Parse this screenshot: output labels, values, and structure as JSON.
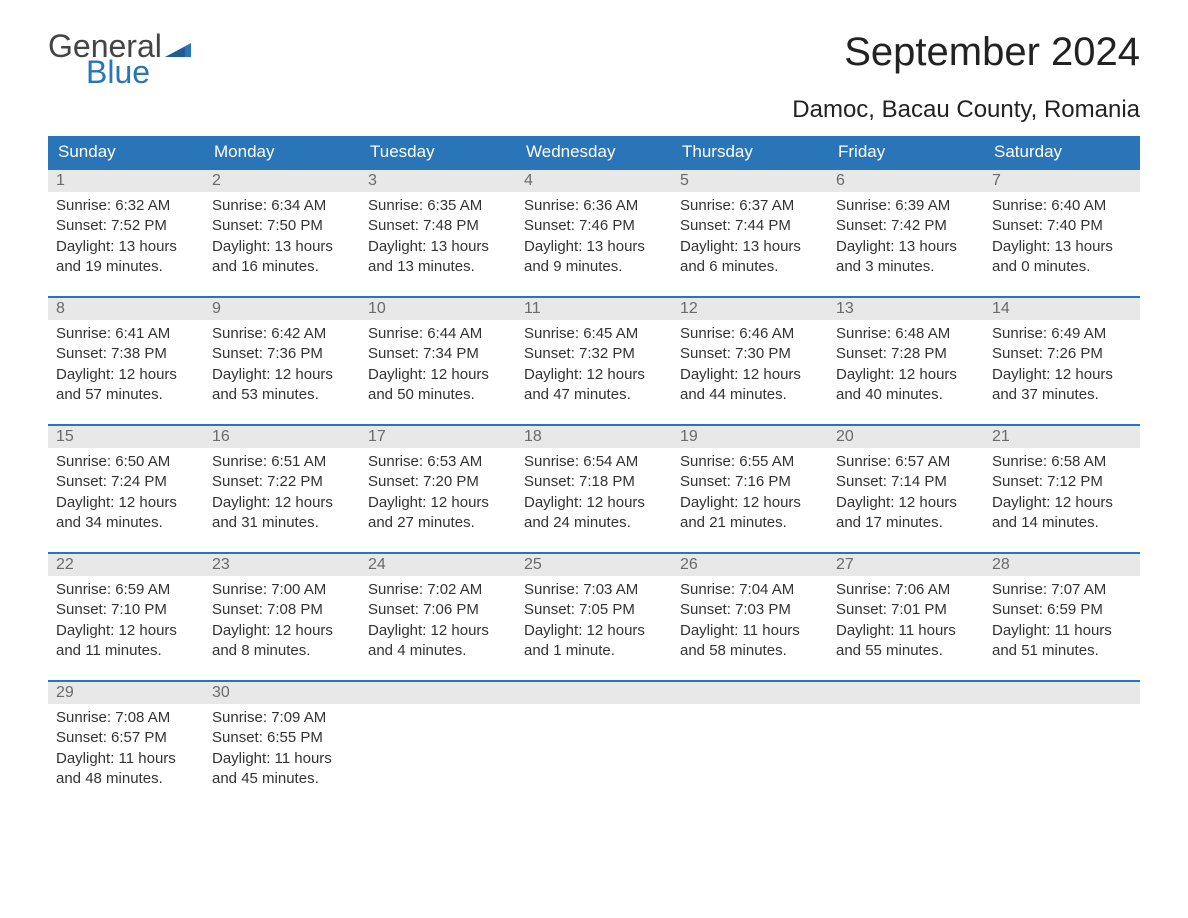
{
  "logo": {
    "text1": "General",
    "text2": "Blue",
    "color_general": "#444444",
    "color_blue": "#2a74b8"
  },
  "title": "September 2024",
  "location": "Damoc, Bacau County, Romania",
  "header_bg": "#2a74b8",
  "daynum_bg": "#e8e8e8",
  "border_color": "#2a74b8",
  "day_headers": [
    "Sunday",
    "Monday",
    "Tuesday",
    "Wednesday",
    "Thursday",
    "Friday",
    "Saturday"
  ],
  "weeks": [
    [
      {
        "n": "1",
        "sunrise": "Sunrise: 6:32 AM",
        "sunset": "Sunset: 7:52 PM",
        "day1": "Daylight: 13 hours",
        "day2": "and 19 minutes."
      },
      {
        "n": "2",
        "sunrise": "Sunrise: 6:34 AM",
        "sunset": "Sunset: 7:50 PM",
        "day1": "Daylight: 13 hours",
        "day2": "and 16 minutes."
      },
      {
        "n": "3",
        "sunrise": "Sunrise: 6:35 AM",
        "sunset": "Sunset: 7:48 PM",
        "day1": "Daylight: 13 hours",
        "day2": "and 13 minutes."
      },
      {
        "n": "4",
        "sunrise": "Sunrise: 6:36 AM",
        "sunset": "Sunset: 7:46 PM",
        "day1": "Daylight: 13 hours",
        "day2": "and 9 minutes."
      },
      {
        "n": "5",
        "sunrise": "Sunrise: 6:37 AM",
        "sunset": "Sunset: 7:44 PM",
        "day1": "Daylight: 13 hours",
        "day2": "and 6 minutes."
      },
      {
        "n": "6",
        "sunrise": "Sunrise: 6:39 AM",
        "sunset": "Sunset: 7:42 PM",
        "day1": "Daylight: 13 hours",
        "day2": "and 3 minutes."
      },
      {
        "n": "7",
        "sunrise": "Sunrise: 6:40 AM",
        "sunset": "Sunset: 7:40 PM",
        "day1": "Daylight: 13 hours",
        "day2": "and 0 minutes."
      }
    ],
    [
      {
        "n": "8",
        "sunrise": "Sunrise: 6:41 AM",
        "sunset": "Sunset: 7:38 PM",
        "day1": "Daylight: 12 hours",
        "day2": "and 57 minutes."
      },
      {
        "n": "9",
        "sunrise": "Sunrise: 6:42 AM",
        "sunset": "Sunset: 7:36 PM",
        "day1": "Daylight: 12 hours",
        "day2": "and 53 minutes."
      },
      {
        "n": "10",
        "sunrise": "Sunrise: 6:44 AM",
        "sunset": "Sunset: 7:34 PM",
        "day1": "Daylight: 12 hours",
        "day2": "and 50 minutes."
      },
      {
        "n": "11",
        "sunrise": "Sunrise: 6:45 AM",
        "sunset": "Sunset: 7:32 PM",
        "day1": "Daylight: 12 hours",
        "day2": "and 47 minutes."
      },
      {
        "n": "12",
        "sunrise": "Sunrise: 6:46 AM",
        "sunset": "Sunset: 7:30 PM",
        "day1": "Daylight: 12 hours",
        "day2": "and 44 minutes."
      },
      {
        "n": "13",
        "sunrise": "Sunrise: 6:48 AM",
        "sunset": "Sunset: 7:28 PM",
        "day1": "Daylight: 12 hours",
        "day2": "and 40 minutes."
      },
      {
        "n": "14",
        "sunrise": "Sunrise: 6:49 AM",
        "sunset": "Sunset: 7:26 PM",
        "day1": "Daylight: 12 hours",
        "day2": "and 37 minutes."
      }
    ],
    [
      {
        "n": "15",
        "sunrise": "Sunrise: 6:50 AM",
        "sunset": "Sunset: 7:24 PM",
        "day1": "Daylight: 12 hours",
        "day2": "and 34 minutes."
      },
      {
        "n": "16",
        "sunrise": "Sunrise: 6:51 AM",
        "sunset": "Sunset: 7:22 PM",
        "day1": "Daylight: 12 hours",
        "day2": "and 31 minutes."
      },
      {
        "n": "17",
        "sunrise": "Sunrise: 6:53 AM",
        "sunset": "Sunset: 7:20 PM",
        "day1": "Daylight: 12 hours",
        "day2": "and 27 minutes."
      },
      {
        "n": "18",
        "sunrise": "Sunrise: 6:54 AM",
        "sunset": "Sunset: 7:18 PM",
        "day1": "Daylight: 12 hours",
        "day2": "and 24 minutes."
      },
      {
        "n": "19",
        "sunrise": "Sunrise: 6:55 AM",
        "sunset": "Sunset: 7:16 PM",
        "day1": "Daylight: 12 hours",
        "day2": "and 21 minutes."
      },
      {
        "n": "20",
        "sunrise": "Sunrise: 6:57 AM",
        "sunset": "Sunset: 7:14 PM",
        "day1": "Daylight: 12 hours",
        "day2": "and 17 minutes."
      },
      {
        "n": "21",
        "sunrise": "Sunrise: 6:58 AM",
        "sunset": "Sunset: 7:12 PM",
        "day1": "Daylight: 12 hours",
        "day2": "and 14 minutes."
      }
    ],
    [
      {
        "n": "22",
        "sunrise": "Sunrise: 6:59 AM",
        "sunset": "Sunset: 7:10 PM",
        "day1": "Daylight: 12 hours",
        "day2": "and 11 minutes."
      },
      {
        "n": "23",
        "sunrise": "Sunrise: 7:00 AM",
        "sunset": "Sunset: 7:08 PM",
        "day1": "Daylight: 12 hours",
        "day2": "and 8 minutes."
      },
      {
        "n": "24",
        "sunrise": "Sunrise: 7:02 AM",
        "sunset": "Sunset: 7:06 PM",
        "day1": "Daylight: 12 hours",
        "day2": "and 4 minutes."
      },
      {
        "n": "25",
        "sunrise": "Sunrise: 7:03 AM",
        "sunset": "Sunset: 7:05 PM",
        "day1": "Daylight: 12 hours",
        "day2": "and 1 minute."
      },
      {
        "n": "26",
        "sunrise": "Sunrise: 7:04 AM",
        "sunset": "Sunset: 7:03 PM",
        "day1": "Daylight: 11 hours",
        "day2": "and 58 minutes."
      },
      {
        "n": "27",
        "sunrise": "Sunrise: 7:06 AM",
        "sunset": "Sunset: 7:01 PM",
        "day1": "Daylight: 11 hours",
        "day2": "and 55 minutes."
      },
      {
        "n": "28",
        "sunrise": "Sunrise: 7:07 AM",
        "sunset": "Sunset: 6:59 PM",
        "day1": "Daylight: 11 hours",
        "day2": "and 51 minutes."
      }
    ],
    [
      {
        "n": "29",
        "sunrise": "Sunrise: 7:08 AM",
        "sunset": "Sunset: 6:57 PM",
        "day1": "Daylight: 11 hours",
        "day2": "and 48 minutes."
      },
      {
        "n": "30",
        "sunrise": "Sunrise: 7:09 AM",
        "sunset": "Sunset: 6:55 PM",
        "day1": "Daylight: 11 hours",
        "day2": "and 45 minutes."
      },
      {
        "empty": true
      },
      {
        "empty": true
      },
      {
        "empty": true
      },
      {
        "empty": true
      },
      {
        "empty": true
      }
    ]
  ]
}
